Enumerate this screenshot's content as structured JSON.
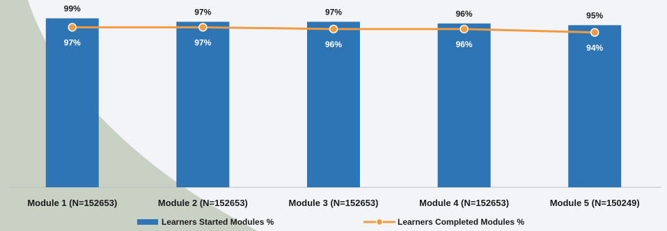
{
  "chart_data": {
    "type": "bar",
    "categories": [
      "Module 1 (N=152653)",
      "Module 2 (N=152653)",
      "Module 3 (N=152653)",
      "Module 4 (N=152653)",
      "Module 5 (N=150249)"
    ],
    "series": [
      {
        "name": "Learners Started Modules %",
        "type": "bar",
        "values": [
          99,
          97,
          97,
          96,
          95
        ],
        "labels": [
          "99%",
          "97%",
          "97%",
          "96%",
          "95%"
        ],
        "color": "#2e75b6"
      },
      {
        "name": "Learners Completed Modules %",
        "type": "line",
        "values": [
          97,
          97,
          96,
          96,
          94
        ],
        "labels": [
          "97%",
          "97%",
          "96%",
          "96%",
          "94%"
        ],
        "color": "#f39a3c"
      }
    ],
    "title": "",
    "xlabel": "",
    "ylabel": "",
    "grid": false,
    "legend_position": "bottom",
    "colors": {
      "background": "#f3f4f8",
      "decor_shape": "#c9d0c4",
      "axis_line": "#bfbfbf"
    }
  }
}
